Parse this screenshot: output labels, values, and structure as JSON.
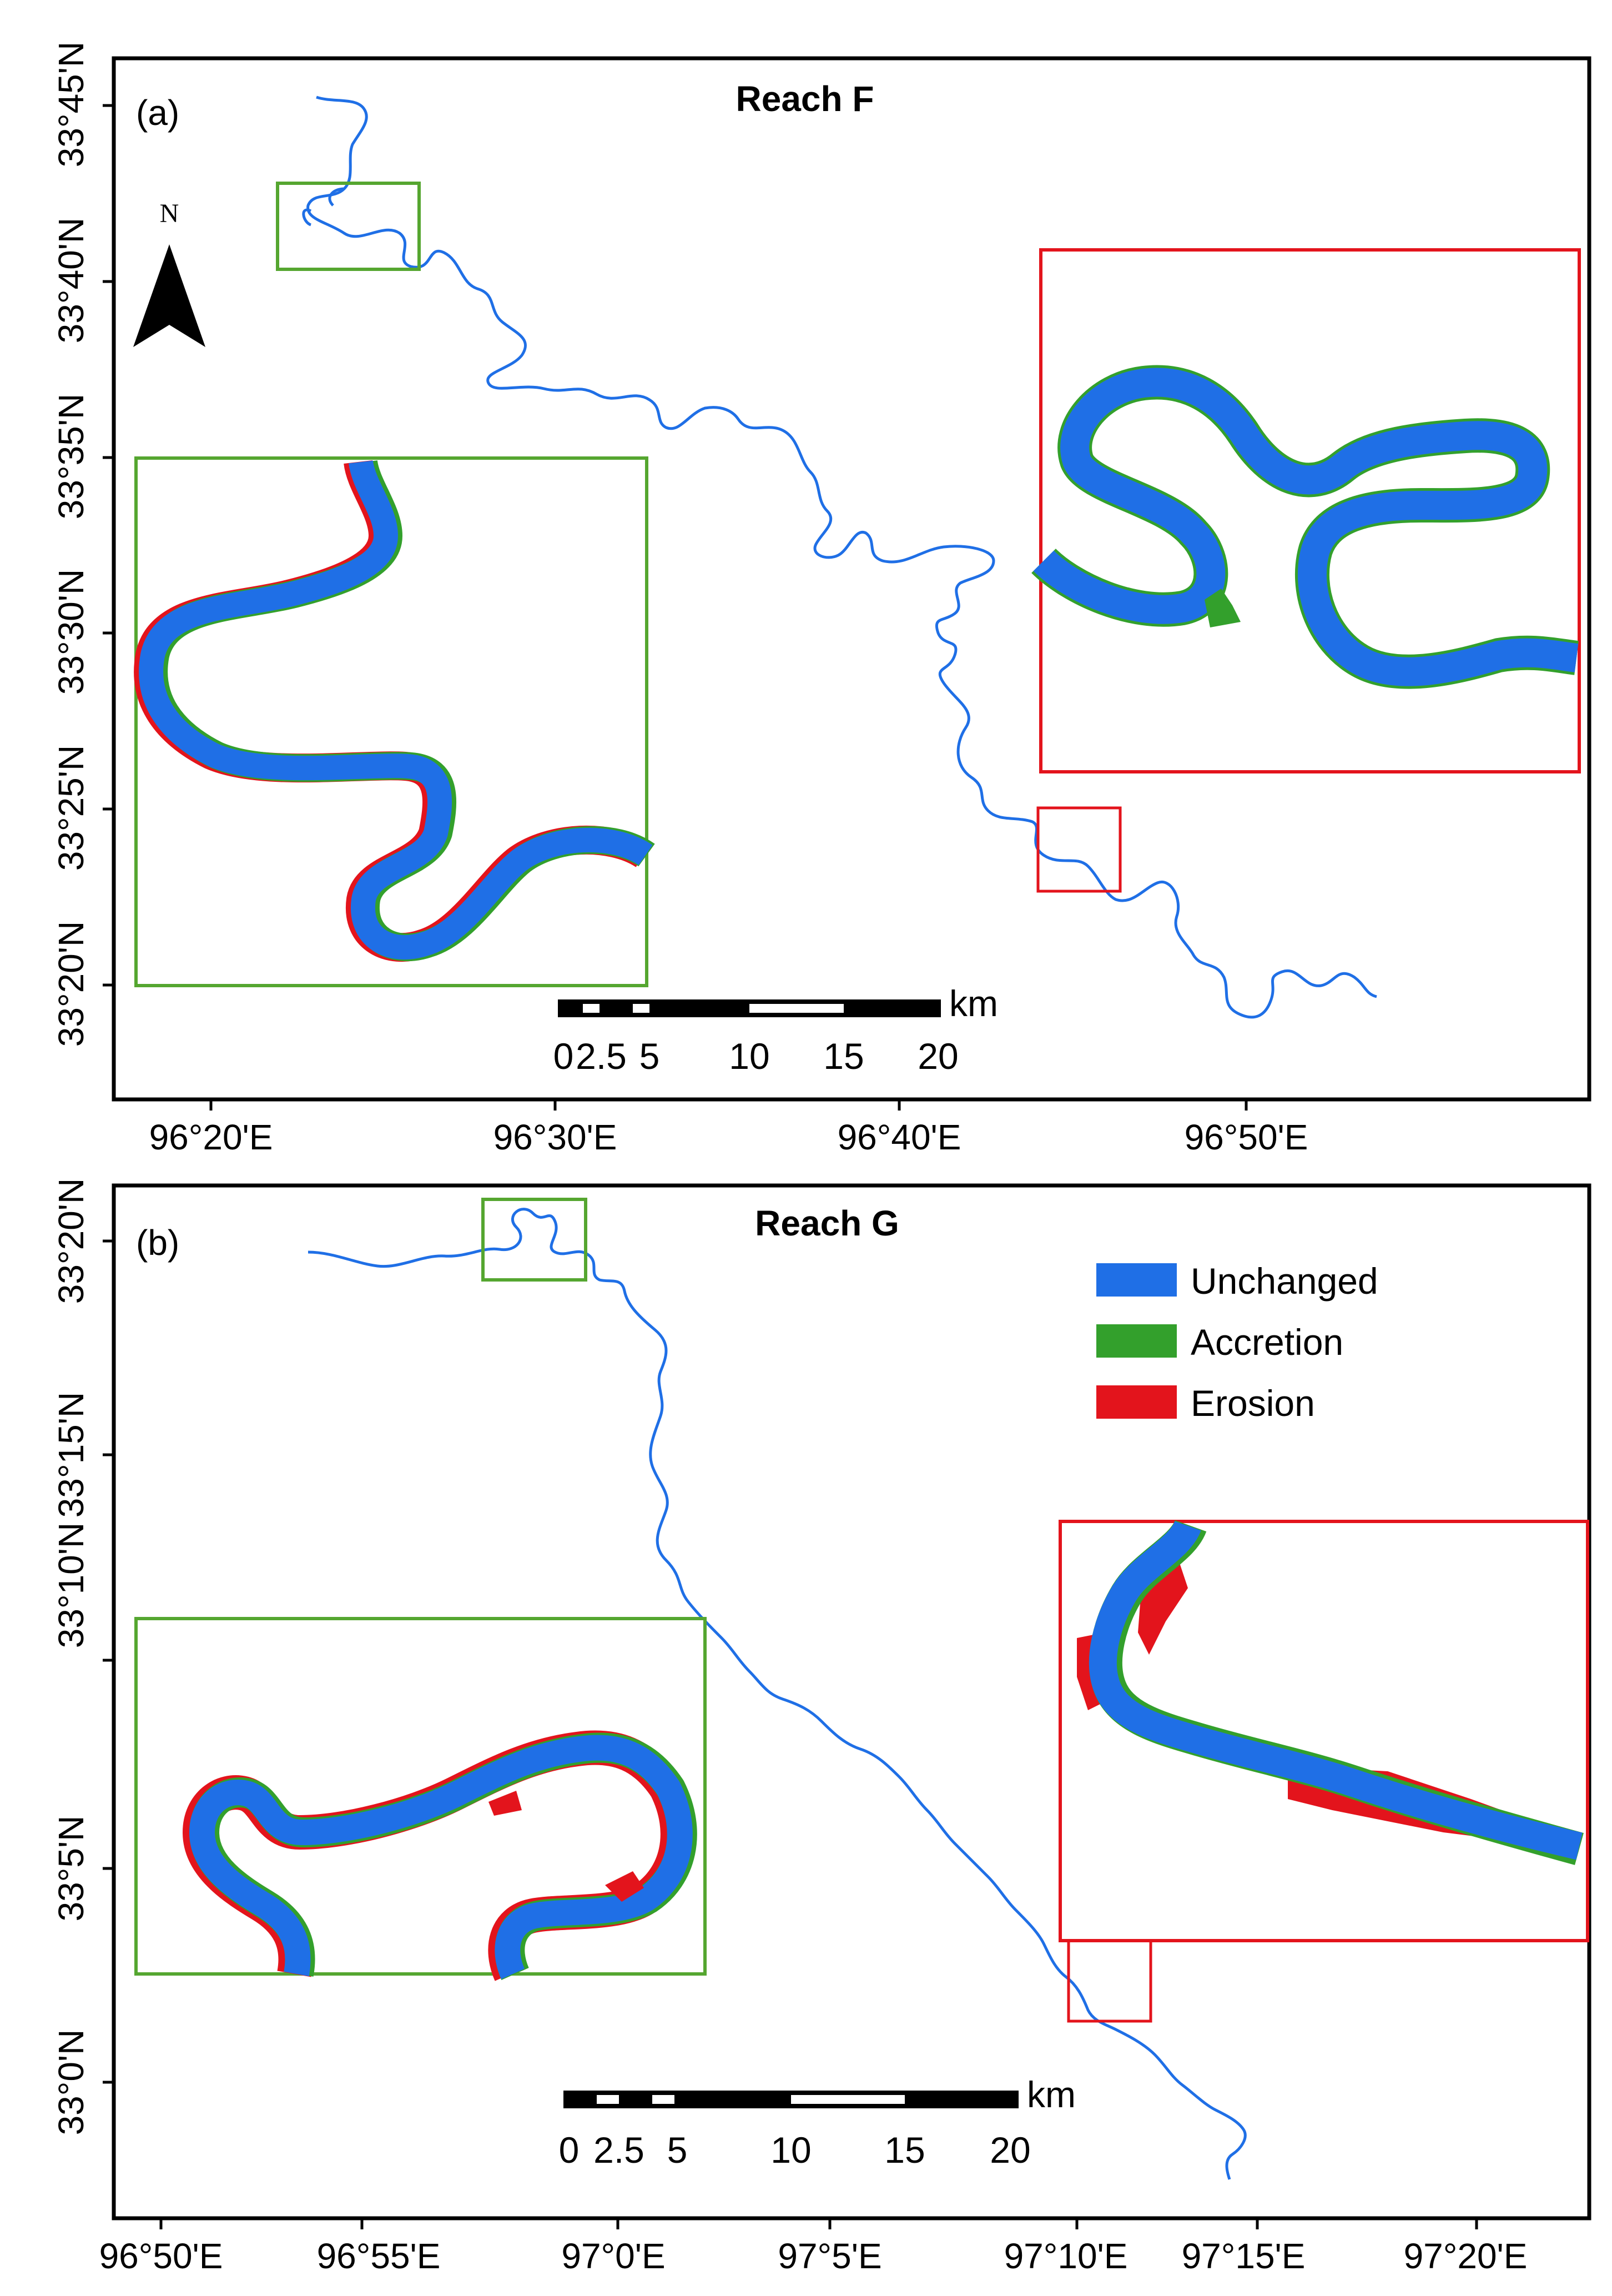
{
  "panel_a": {
    "label": "(a)",
    "title": "Reach F",
    "north": "N",
    "y_ticks": [
      "33°45'N",
      "33°40'N",
      "33°35'N",
      "33°30'N",
      "33°25'N",
      "33°20'N"
    ],
    "x_ticks": [
      "96°20'E",
      "96°30'E",
      "96°40'E",
      "96°50'E"
    ],
    "scale": {
      "labels": [
        "0",
        "2.5",
        "5",
        "10",
        "15",
        "20"
      ],
      "unit": "km"
    }
  },
  "panel_b": {
    "label": "(b)",
    "title": "Reach G",
    "y_ticks": [
      "33°20'N",
      "33°15'N",
      "33°10'N",
      "33°5'N",
      "33°0'N"
    ],
    "x_ticks": [
      "96°50'E",
      "96°55'E",
      "97°0'E",
      "97°5'E",
      "97°10'E",
      "97°15'E",
      "97°20'E"
    ],
    "scale": {
      "labels": [
        "0",
        "2.5",
        "5",
        "10",
        "15",
        "20"
      ],
      "unit": "km"
    }
  },
  "legend": [
    {
      "label": "Unchanged",
      "color": "#1f6fe6"
    },
    {
      "label": "Accretion",
      "color": "#33a02c"
    },
    {
      "label": "Erosion",
      "color": "#e3141c"
    }
  ],
  "colors": {
    "river": "#1f6fe6",
    "accretion": "#33a02c",
    "erosion": "#e3141c",
    "inset_green": "#55a630",
    "inset_red": "#e3141c"
  }
}
